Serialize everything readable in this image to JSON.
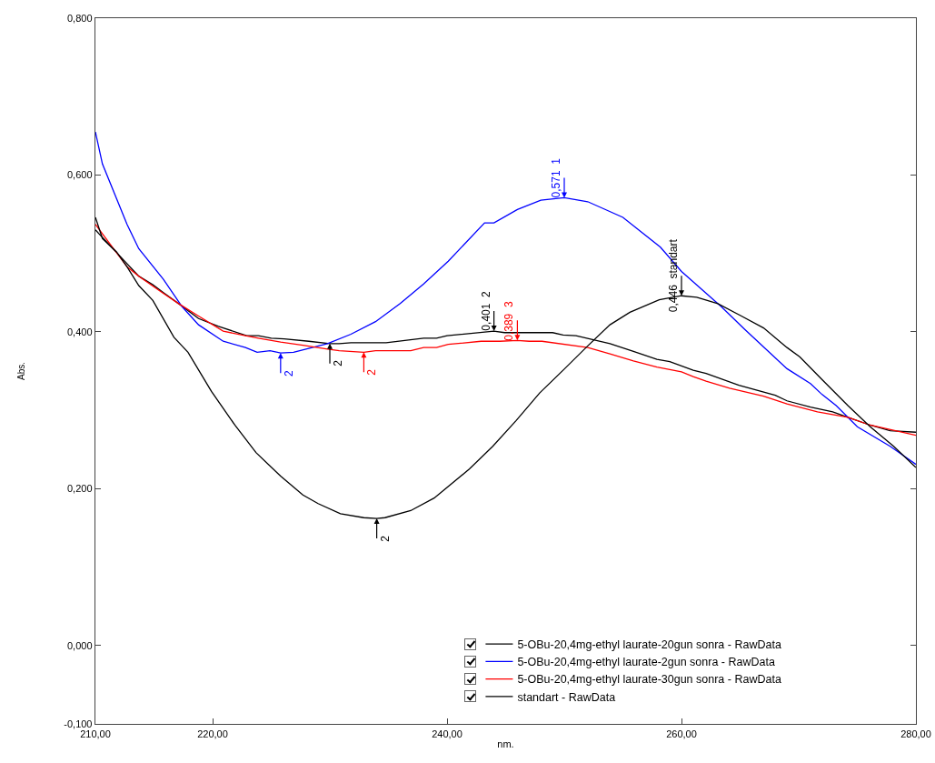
{
  "chart_data": {
    "type": "line",
    "xlabel": "nm.",
    "ylabel": "Abs.",
    "xlim": [
      210,
      280
    ],
    "xticks": [
      {
        "value": 210,
        "label": "210,00"
      },
      {
        "value": 220,
        "label": "220,00"
      },
      {
        "value": 240,
        "label": "240,00"
      },
      {
        "value": 260,
        "label": "260,00"
      },
      {
        "value": 280,
        "label": "280,00"
      }
    ],
    "ylim": [
      -0.1,
      0.8
    ],
    "yticks": [
      {
        "value": -0.1,
        "label": "-0,100"
      },
      {
        "value": 0,
        "label": "0,000"
      },
      {
        "value": 0.2,
        "label": "0,200"
      },
      {
        "value": 0.4,
        "label": "0,400"
      },
      {
        "value": 0.6,
        "label": "0,600"
      },
      {
        "value": 0.8,
        "label": "0,800"
      }
    ],
    "grid": false,
    "legend": "bottom right",
    "marker": "none",
    "line_style": "solid",
    "series": [
      {
        "name": "5-OBu-20,4mg-ethyl laurate-20gun sonra - RawData",
        "color": "#000000",
        "x": [
          210,
          212,
          213.7,
          214.9,
          215.8,
          217.1,
          218.8,
          220.5,
          222.9,
          223.9,
          225,
          226.1,
          228.2,
          230,
          230.8,
          231.8,
          234.8,
          238,
          239.1,
          240,
          244,
          244.9,
          249,
          249.9,
          251,
          253.9,
          255.9,
          257.9,
          259,
          261,
          262.1,
          264.9,
          268,
          269,
          271,
          272.9,
          274.2,
          276.1,
          277.8,
          280
        ],
        "values": [
          0.53,
          0.498,
          0.471,
          0.46,
          0.45,
          0.436,
          0.417,
          0.407,
          0.395,
          0.395,
          0.392,
          0.391,
          0.388,
          0.385,
          0.385,
          0.386,
          0.386,
          0.392,
          0.392,
          0.395,
          0.401,
          0.399,
          0.399,
          0.396,
          0.395,
          0.385,
          0.375,
          0.365,
          0.362,
          0.351,
          0.347,
          0.332,
          0.319,
          0.312,
          0.304,
          0.298,
          0.291,
          0.281,
          0.274,
          0.272
        ]
      },
      {
        "name": "5-OBu-20,4mg-ethyl laurate-2gun sonra - RawData",
        "color": "#0000ff",
        "x": [
          210,
          210.6,
          212.7,
          213.7,
          215.8,
          217.4,
          218.8,
          220.9,
          222.8,
          223.8,
          224.9,
          225.8,
          226.9,
          229.8,
          231.8,
          233.9,
          236,
          238,
          240.1,
          243.2,
          244,
          246,
          248,
          250,
          252,
          255,
          258.2,
          260,
          263.4,
          265.4,
          269,
          271,
          272,
          273.2,
          275,
          277.8,
          280
        ],
        "values": [
          0.655,
          0.614,
          0.537,
          0.506,
          0.467,
          0.432,
          0.409,
          0.388,
          0.38,
          0.374,
          0.376,
          0.373,
          0.374,
          0.385,
          0.397,
          0.413,
          0.436,
          0.461,
          0.49,
          0.539,
          0.539,
          0.556,
          0.568,
          0.571,
          0.566,
          0.546,
          0.508,
          0.477,
          0.432,
          0.403,
          0.353,
          0.334,
          0.32,
          0.306,
          0.279,
          0.254,
          0.231
        ]
      },
      {
        "name": "5-OBu-20,4mg-ethyl laurate-30gun sonra - RawData",
        "color": "#ff0000",
        "x": [
          210,
          212.7,
          213.7,
          215.7,
          217.1,
          218.7,
          220.9,
          222.8,
          223.9,
          225.8,
          227.7,
          229.8,
          230.8,
          232.9,
          233.9,
          236.9,
          238,
          239.1,
          240.1,
          242.9,
          244.5,
          246,
          247,
          248.1,
          252,
          253.9,
          255.9,
          257.9,
          260,
          261,
          262.1,
          264.1,
          267,
          269,
          271.6,
          274.2,
          276.1,
          280
        ],
        "values": [
          0.537,
          0.483,
          0.471,
          0.45,
          0.436,
          0.421,
          0.401,
          0.395,
          0.392,
          0.387,
          0.383,
          0.378,
          0.376,
          0.374,
          0.376,
          0.376,
          0.38,
          0.38,
          0.384,
          0.388,
          0.388,
          0.389,
          0.388,
          0.388,
          0.38,
          0.372,
          0.363,
          0.355,
          0.349,
          0.343,
          0.337,
          0.328,
          0.318,
          0.308,
          0.298,
          0.291,
          0.281,
          0.268
        ]
      },
      {
        "name": "standart - RawData",
        "color": "#000000",
        "x": [
          210,
          210.6,
          211.8,
          212.7,
          213.7,
          214.9,
          216.7,
          217.9,
          219.9,
          221.9,
          223.7,
          225.8,
          227.7,
          229,
          230.9,
          232.9,
          234,
          234.7,
          236.9,
          238.9,
          241.9,
          243.9,
          245.9,
          247.9,
          249.9,
          252,
          253.9,
          255.6,
          258.1,
          260,
          261.3,
          263.1,
          265,
          267,
          269,
          270.1,
          272,
          274.2,
          276.1,
          278.1,
          280
        ],
        "values": [
          0.546,
          0.519,
          0.502,
          0.483,
          0.459,
          0.44,
          0.393,
          0.374,
          0.324,
          0.281,
          0.246,
          0.216,
          0.192,
          0.181,
          0.168,
          0.163,
          0.162,
          0.163,
          0.172,
          0.188,
          0.225,
          0.254,
          0.287,
          0.322,
          0.351,
          0.382,
          0.409,
          0.425,
          0.441,
          0.446,
          0.444,
          0.436,
          0.421,
          0.405,
          0.38,
          0.368,
          0.339,
          0.306,
          0.279,
          0.254,
          0.227
        ]
      }
    ],
    "annotations": [
      {
        "text": "0,571  1",
        "x": 250,
        "y": 0.571
      },
      {
        "text": "0,401  2",
        "x": 244,
        "y": 0.401
      },
      {
        "text": "0,389  3",
        "x": 246,
        "y": 0.389
      },
      {
        "text": "0,446  standart",
        "x": 260,
        "y": 0.446
      },
      {
        "text": "2",
        "x": 225.8,
        "y": 0.373
      },
      {
        "text": "2",
        "x": 230,
        "y": 0.385
      },
      {
        "text": "2",
        "x": 232.9,
        "y": 0.374
      },
      {
        "text": "2",
        "x": 234,
        "y": 0.162
      }
    ]
  }
}
